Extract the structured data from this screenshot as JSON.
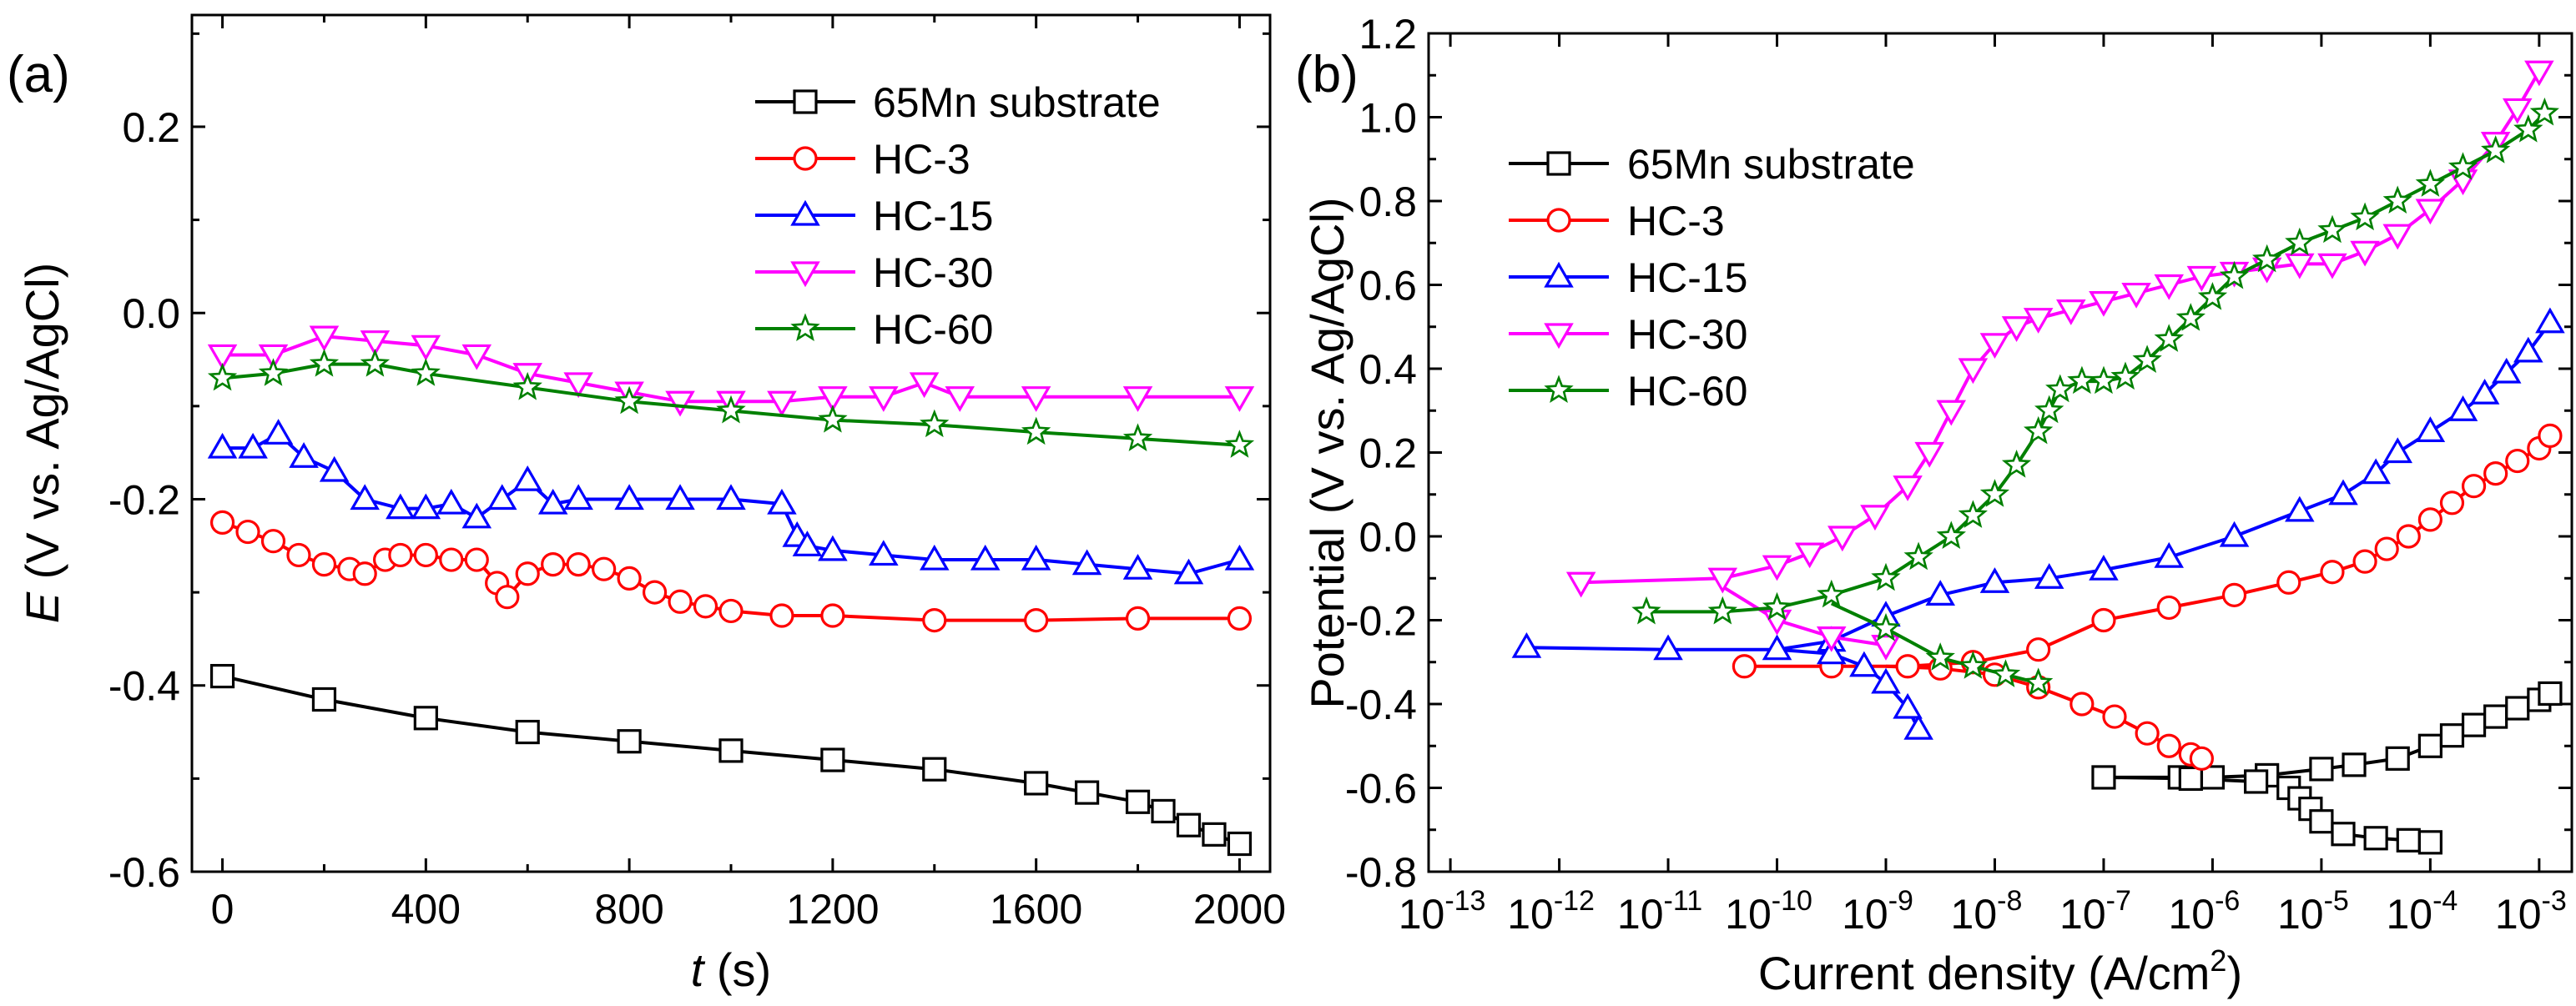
{
  "chart_data": [
    {
      "type": "line",
      "panel_label": "(a)",
      "xlabel_var": "t",
      "xlabel_unit": " (s)",
      "ylabel_var": "E",
      "ylabel_rest": " (V vs. Ag/AgCl)",
      "xlim": [
        -60,
        2060
      ],
      "ylim": [
        -0.6,
        0.32
      ],
      "xticks": [
        0,
        400,
        800,
        1200,
        1600,
        2000
      ],
      "xtick_labels": [
        "0",
        "400",
        "800",
        "1200",
        "1600",
        "2000"
      ],
      "yticks": [
        -0.6,
        -0.4,
        -0.2,
        0.0,
        0.2
      ],
      "ytick_labels": [
        "-0.6",
        "-0.4",
        "-0.2",
        "0.0",
        "0.2"
      ],
      "legend_position": "top-right",
      "series": [
        {
          "name": "65Mn substrate",
          "color": "#000000",
          "marker": "square",
          "x": [
            0,
            200,
            400,
            600,
            800,
            1000,
            1200,
            1400,
            1600,
            1700,
            1800,
            1850,
            1900,
            1950,
            2000
          ],
          "y": [
            -0.39,
            -0.415,
            -0.435,
            -0.45,
            -0.46,
            -0.47,
            -0.48,
            -0.49,
            -0.505,
            -0.515,
            -0.525,
            -0.535,
            -0.55,
            -0.56,
            -0.57
          ]
        },
        {
          "name": "HC-3",
          "color": "#ff0000",
          "marker": "circle",
          "x": [
            0,
            50,
            100,
            150,
            200,
            250,
            280,
            320,
            350,
            400,
            450,
            500,
            540,
            560,
            600,
            650,
            700,
            750,
            800,
            850,
            900,
            950,
            1000,
            1100,
            1200,
            1400,
            1600,
            1800,
            2000
          ],
          "y": [
            -0.225,
            -0.235,
            -0.245,
            -0.26,
            -0.27,
            -0.275,
            -0.28,
            -0.265,
            -0.26,
            -0.26,
            -0.265,
            -0.265,
            -0.29,
            -0.305,
            -0.28,
            -0.27,
            -0.27,
            -0.275,
            -0.285,
            -0.3,
            -0.31,
            -0.315,
            -0.32,
            -0.325,
            -0.325,
            -0.33,
            -0.33,
            -0.328,
            -0.328
          ]
        },
        {
          "name": "HC-15",
          "color": "#0000ff",
          "marker": "triangle-up",
          "x": [
            0,
            60,
            110,
            160,
            220,
            280,
            350,
            400,
            450,
            500,
            550,
            600,
            650,
            700,
            800,
            900,
            1000,
            1100,
            1130,
            1150,
            1200,
            1300,
            1400,
            1500,
            1600,
            1700,
            1800,
            1900,
            2000
          ],
          "y": [
            -0.145,
            -0.145,
            -0.13,
            -0.155,
            -0.17,
            -0.2,
            -0.21,
            -0.21,
            -0.205,
            -0.22,
            -0.2,
            -0.18,
            -0.205,
            -0.2,
            -0.2,
            -0.2,
            -0.2,
            -0.205,
            -0.24,
            -0.25,
            -0.255,
            -0.26,
            -0.265,
            -0.265,
            -0.265,
            -0.27,
            -0.275,
            -0.28,
            -0.265
          ]
        },
        {
          "name": "HC-30",
          "color": "#ff00ff",
          "marker": "triangle-down",
          "x": [
            0,
            100,
            200,
            300,
            400,
            500,
            600,
            700,
            800,
            900,
            1000,
            1100,
            1200,
            1300,
            1380,
            1450,
            1600,
            1800,
            2000
          ],
          "y": [
            -0.045,
            -0.045,
            -0.025,
            -0.03,
            -0.035,
            -0.045,
            -0.065,
            -0.075,
            -0.085,
            -0.095,
            -0.095,
            -0.095,
            -0.09,
            -0.09,
            -0.075,
            -0.09,
            -0.09,
            -0.09,
            -0.09
          ]
        },
        {
          "name": "HC-60",
          "color": "#008000",
          "marker": "star",
          "x": [
            0,
            100,
            200,
            300,
            400,
            600,
            800,
            1000,
            1200,
            1400,
            1600,
            1800,
            2000
          ],
          "y": [
            -0.07,
            -0.065,
            -0.055,
            -0.055,
            -0.065,
            -0.08,
            -0.095,
            -0.105,
            -0.115,
            -0.12,
            -0.128,
            -0.135,
            -0.142
          ]
        }
      ]
    },
    {
      "type": "line",
      "panel_label": "(b)",
      "xlabel": "Current density (A/cm",
      "xlabel_sup": "2",
      "xlabel_end": ")",
      "ylabel": "Potential (V vs. Ag/AgCl)",
      "xscale": "log10",
      "xlim": [
        -13.2,
        -2.7
      ],
      "ylim": [
        -0.8,
        1.2
      ],
      "xtick_exponents": [
        -13,
        -12,
        -11,
        -10,
        -9,
        -8,
        -7,
        -6,
        -5,
        -4,
        -3
      ],
      "xtick_base": "10",
      "yticks": [
        -0.8,
        -0.6,
        -0.4,
        -0.2,
        0.0,
        0.2,
        0.4,
        0.6,
        0.8,
        1.0,
        1.2
      ],
      "ytick_labels": [
        "-0.8",
        "-0.6",
        "-0.4",
        "-0.2",
        "0.0",
        "0.2",
        "0.4",
        "0.6",
        "0.8",
        "1.0",
        "1.2"
      ],
      "legend_position": "top-left",
      "series": [
        {
          "name": "65Mn substrate",
          "color": "#000000",
          "marker": "square",
          "log_x": [
            -7.0,
            -6.3,
            -6.0,
            -5.5,
            -5.0,
            -4.7,
            -4.3,
            -4.0,
            -3.8,
            -3.6,
            -3.4,
            -3.2,
            -3.0,
            -2.9
          ],
          "y": [
            -0.575,
            -0.575,
            -0.575,
            -0.57,
            -0.555,
            -0.545,
            -0.53,
            -0.5,
            -0.475,
            -0.45,
            -0.43,
            -0.41,
            -0.39,
            -0.375
          ],
          "log_x2": [
            -7.0,
            -6.2,
            -5.6,
            -5.3,
            -5.2,
            -5.1,
            -5.0,
            -4.8,
            -4.5,
            -4.2,
            -4.0
          ],
          "y2": [
            -0.575,
            -0.578,
            -0.585,
            -0.6,
            -0.625,
            -0.65,
            -0.68,
            -0.71,
            -0.72,
            -0.725,
            -0.73
          ]
        },
        {
          "name": "HC-3",
          "color": "#ff0000",
          "marker": "circle",
          "log_x": [
            -10.3,
            -9.5,
            -8.8,
            -8.2,
            -7.6,
            -7.0,
            -6.4,
            -5.8,
            -5.3,
            -4.9,
            -4.6,
            -4.4,
            -4.2,
            -4.0,
            -3.8,
            -3.6,
            -3.4,
            -3.2,
            -3.0,
            -2.9
          ],
          "y": [
            -0.31,
            -0.31,
            -0.31,
            -0.3,
            -0.27,
            -0.2,
            -0.17,
            -0.14,
            -0.11,
            -0.085,
            -0.06,
            -0.03,
            0.0,
            0.04,
            0.08,
            0.12,
            0.15,
            0.18,
            0.21,
            0.24
          ],
          "log_x2": [
            -9.0,
            -8.5,
            -8.0,
            -7.6,
            -7.2,
            -6.9,
            -6.6,
            -6.4,
            -6.2,
            -6.1
          ],
          "y2": [
            -0.31,
            -0.315,
            -0.33,
            -0.36,
            -0.4,
            -0.43,
            -0.47,
            -0.5,
            -0.52,
            -0.53
          ]
        },
        {
          "name": "HC-15",
          "color": "#0000ff",
          "marker": "triangle-up",
          "log_x": [
            -12.3,
            -11.0,
            -10.0,
            -9.5,
            -9.0,
            -8.5,
            -8.0,
            -7.5,
            -7.0,
            -6.4,
            -5.8,
            -5.2,
            -4.8,
            -4.5,
            -4.3,
            -4.0,
            -3.7,
            -3.5,
            -3.3,
            -3.1,
            -2.9
          ],
          "y": [
            -0.265,
            -0.27,
            -0.27,
            -0.25,
            -0.19,
            -0.14,
            -0.11,
            -0.1,
            -0.08,
            -0.05,
            0.0,
            0.06,
            0.1,
            0.15,
            0.2,
            0.25,
            0.3,
            0.34,
            0.39,
            0.44,
            0.51
          ],
          "log_x2": [
            -10.0,
            -9.5,
            -9.2,
            -9.0,
            -8.8,
            -8.7
          ],
          "y2": [
            -0.27,
            -0.28,
            -0.31,
            -0.35,
            -0.41,
            -0.46
          ]
        },
        {
          "name": "HC-30",
          "color": "#ff00ff",
          "marker": "triangle-down",
          "log_x": [
            -11.8,
            -10.5,
            -10.0,
            -9.7,
            -9.4,
            -9.1,
            -8.8,
            -8.6,
            -8.4,
            -8.2,
            -8.0,
            -7.8,
            -7.6,
            -7.3,
            -7.0,
            -6.7,
            -6.4,
            -6.1,
            -5.8,
            -5.5,
            -5.2,
            -4.9,
            -4.6,
            -4.3,
            -4.0,
            -3.7,
            -3.4,
            -3.2,
            -3.0
          ],
          "y": [
            -0.11,
            -0.1,
            -0.07,
            -0.04,
            0.0,
            0.05,
            0.12,
            0.2,
            0.3,
            0.4,
            0.46,
            0.5,
            0.52,
            0.54,
            0.56,
            0.58,
            0.6,
            0.62,
            0.63,
            0.64,
            0.65,
            0.65,
            0.68,
            0.72,
            0.78,
            0.85,
            0.94,
            1.02,
            1.11
          ],
          "log_x2": [
            -10.5,
            -10.0,
            -9.5,
            -9.0
          ],
          "y2": [
            -0.12,
            -0.2,
            -0.24,
            -0.26
          ]
        },
        {
          "name": "HC-60",
          "color": "#008000",
          "marker": "star",
          "log_x": [
            -11.2,
            -10.5,
            -10.0,
            -9.5,
            -9.0,
            -8.7,
            -8.4,
            -8.2,
            -8.0,
            -7.8,
            -7.6,
            -7.5,
            -7.4,
            -7.2,
            -7.0,
            -6.8,
            -6.6,
            -6.4,
            -6.2,
            -6.0,
            -5.8,
            -5.5,
            -5.2,
            -4.9,
            -4.6,
            -4.3,
            -4.0,
            -3.7,
            -3.4,
            -3.1,
            -2.95
          ],
          "y": [
            -0.18,
            -0.18,
            -0.17,
            -0.14,
            -0.1,
            -0.05,
            0.0,
            0.05,
            0.1,
            0.17,
            0.25,
            0.3,
            0.35,
            0.37,
            0.37,
            0.38,
            0.42,
            0.47,
            0.52,
            0.57,
            0.62,
            0.66,
            0.7,
            0.73,
            0.76,
            0.8,
            0.84,
            0.88,
            0.92,
            0.97,
            1.01
          ],
          "log_x2": [
            -9.5,
            -9.0,
            -8.5,
            -8.2,
            -7.9,
            -7.6
          ],
          "y2": [
            -0.16,
            -0.22,
            -0.29,
            -0.31,
            -0.33,
            -0.35
          ]
        }
      ]
    }
  ]
}
